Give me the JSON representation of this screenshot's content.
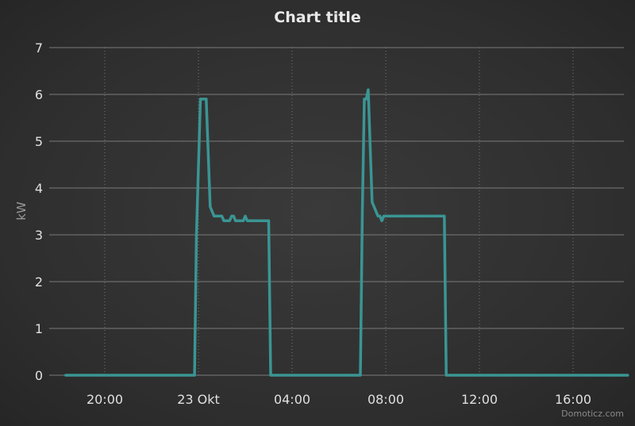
{
  "chart_data": {
    "type": "line",
    "title": "Chart title",
    "ylabel": "kW",
    "xlabel": "",
    "ylim": [
      0,
      7
    ],
    "y_ticks": [
      0,
      1,
      2,
      3,
      4,
      5,
      6,
      7
    ],
    "x_ticks": [
      "20:00",
      "23 Okt",
      "04:00",
      "08:00",
      "12:00",
      "16:00"
    ],
    "grid": true,
    "legend": "none",
    "credit": "Domoticz.com",
    "colors": {
      "series": "#3a9594",
      "grid_major": "#7a7a7a",
      "grid_minor": "#777777",
      "title": "#e8e8e8",
      "tick_label": "#e0e0e0",
      "axis_label": "#9a9a9a",
      "credit": "#8a8a8a"
    },
    "series": [
      {
        "values": [
          [
            "2022-10-22 18:20",
            0
          ],
          [
            "2022-10-22 23:50",
            0
          ],
          [
            "2022-10-22 23:55",
            3.0
          ],
          [
            "2022-10-23 00:05",
            5.9
          ],
          [
            "2022-10-23 00:20",
            5.9
          ],
          [
            "2022-10-23 00:30",
            3.6
          ],
          [
            "2022-10-23 00:40",
            3.4
          ],
          [
            "2022-10-23 01:00",
            3.4
          ],
          [
            "2022-10-23 01:05",
            3.3
          ],
          [
            "2022-10-23 01:20",
            3.3
          ],
          [
            "2022-10-23 01:25",
            3.4
          ],
          [
            "2022-10-23 01:30",
            3.4
          ],
          [
            "2022-10-23 01:35",
            3.3
          ],
          [
            "2022-10-23 01:55",
            3.3
          ],
          [
            "2022-10-23 02:00",
            3.4
          ],
          [
            "2022-10-23 02:05",
            3.3
          ],
          [
            "2022-10-23 02:30",
            3.3
          ],
          [
            "2022-10-23 03:00",
            3.3
          ],
          [
            "2022-10-23 03:05",
            0
          ],
          [
            "2022-10-23 06:55",
            0
          ],
          [
            "2022-10-23 07:00",
            3.5
          ],
          [
            "2022-10-23 07:05",
            5.9
          ],
          [
            "2022-10-23 07:10",
            5.9
          ],
          [
            "2022-10-23 07:15",
            6.1
          ],
          [
            "2022-10-23 07:25",
            3.7
          ],
          [
            "2022-10-23 07:35",
            3.5
          ],
          [
            "2022-10-23 07:40",
            3.4
          ],
          [
            "2022-10-23 07:45",
            3.4
          ],
          [
            "2022-10-23 07:50",
            3.3
          ],
          [
            "2022-10-23 07:55",
            3.4
          ],
          [
            "2022-10-23 08:30",
            3.4
          ],
          [
            "2022-10-23 10:30",
            3.4
          ],
          [
            "2022-10-23 10:35",
            0
          ],
          [
            "2022-10-23 18:20",
            0
          ]
        ]
      }
    ]
  }
}
